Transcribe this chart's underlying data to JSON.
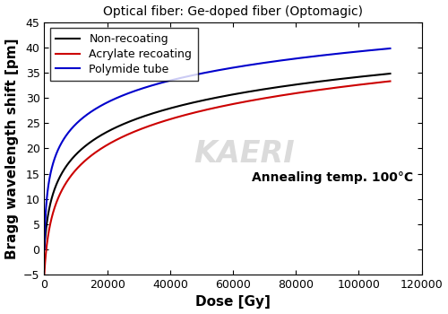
{
  "title": "Optical fiber: Ge-doped fiber (Optomagic)",
  "xlabel": "Dose [Gy]",
  "ylabel": "Bragg wavelength shift [pm]",
  "xlim": [
    0,
    120000
  ],
  "ylim": [
    -5,
    45
  ],
  "xticks": [
    0,
    20000,
    40000,
    60000,
    80000,
    100000,
    120000
  ],
  "yticks": [
    -5,
    0,
    5,
    10,
    15,
    20,
    25,
    30,
    35,
    40,
    45
  ],
  "annotation": "Annealing temp. 100°C",
  "legend_labels": [
    "Non-recoating",
    "Acrylate recoating",
    "Polymide tube"
  ],
  "legend_colors": [
    "#000000",
    "#cc0000",
    "#0000cc"
  ],
  "black_A": 6.0,
  "black_B": 700,
  "black_C": 0.0,
  "red_A": 6.0,
  "red_B": 700,
  "red_C": -4.8,
  "blue_A": 7.2,
  "blue_B": 500,
  "blue_C": 0.0,
  "title_fontsize": 10,
  "label_fontsize": 11,
  "tick_fontsize": 9,
  "legend_fontsize": 9,
  "annotation_fontsize": 10,
  "background_color": "#ffffff"
}
